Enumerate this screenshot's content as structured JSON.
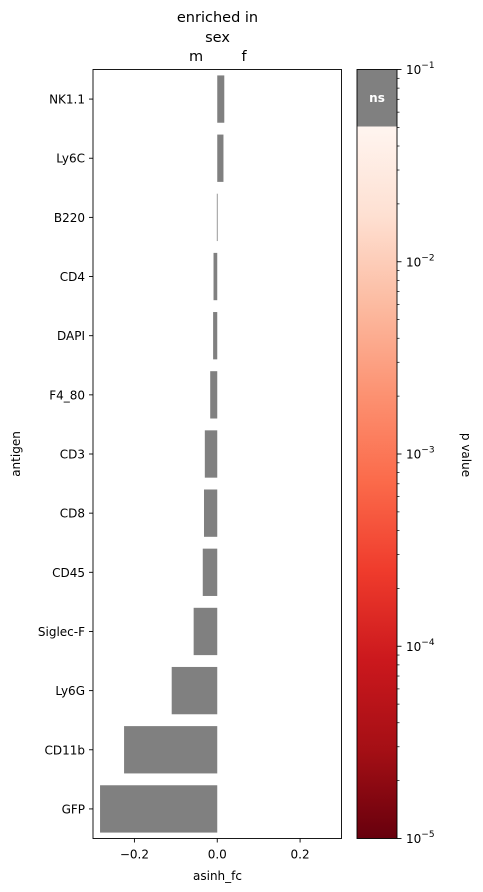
{
  "chart_data": {
    "type": "bar",
    "orientation": "horizontal",
    "title_lines": [
      "enriched in",
      "sex"
    ],
    "direction_labels": {
      "left": "m",
      "right": "f"
    },
    "xlabel": "asinh_fc",
    "ylabel": "antigen",
    "xlim": [
      -0.3,
      0.3
    ],
    "x_ticks": [
      -0.2,
      0.0,
      0.2
    ],
    "x_tick_labels": [
      "−0.2",
      "0.0",
      "0.2"
    ],
    "categories": [
      "NK1.1",
      "Ly6C",
      "B220",
      "CD4",
      "DAPI",
      "F4_80",
      "CD3",
      "CD8",
      "CD45",
      "Siglec-F",
      "Ly6G",
      "CD11b",
      "GFP"
    ],
    "values": [
      0.017,
      0.015,
      -0.001,
      -0.009,
      -0.01,
      -0.017,
      -0.03,
      -0.032,
      -0.035,
      -0.057,
      -0.11,
      -0.225,
      -0.283
    ],
    "bar_color": "#808080",
    "colorbar": {
      "label": "p value",
      "scale": "log",
      "range": [
        1e-05,
        0.1
      ],
      "tick_labels": [
        {
          "value": 1e-05,
          "base": "10",
          "exp": "−5"
        },
        {
          "value": 0.0001,
          "base": "10",
          "exp": "−4"
        },
        {
          "value": 0.001,
          "base": "10",
          "exp": "−3"
        },
        {
          "value": 0.01,
          "base": "10",
          "exp": "−2"
        },
        {
          "value": 0.1,
          "base": "10",
          "exp": "−1"
        }
      ],
      "ns_label": "ns",
      "ns_threshold": 0.05,
      "ns_color": "#808080",
      "colormap": [
        "#67000d",
        "#a50f15",
        "#cb181d",
        "#ef3b2c",
        "#fb6a4a",
        "#fc9272",
        "#fcbba1",
        "#fee0d2",
        "#fff5f0"
      ]
    }
  }
}
